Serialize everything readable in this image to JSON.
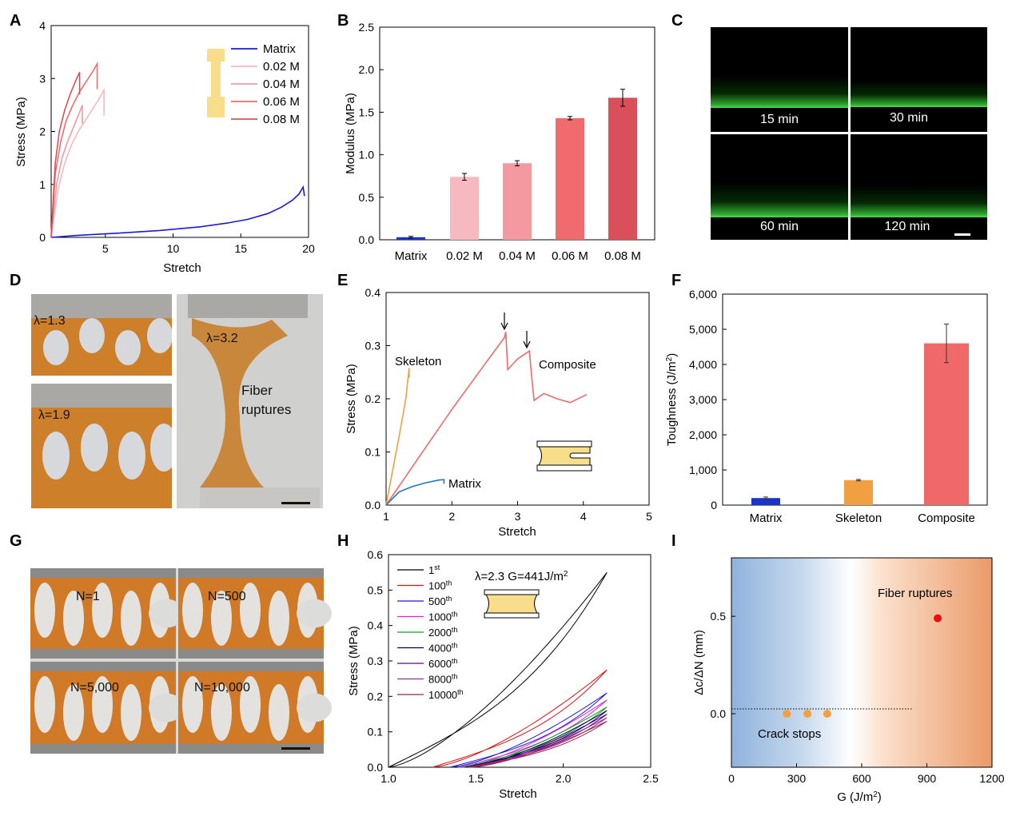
{
  "panel_letters": {
    "A": "A",
    "B": "B",
    "C": "C",
    "D": "D",
    "E": "E",
    "F": "F",
    "G": "G",
    "H": "H",
    "I": "I"
  },
  "colors": {
    "matrix_blue": "#1a1ad6",
    "pink_002": "#f6b9bf",
    "pink_004": "#f29a9f",
    "red_006": "#f06b6e",
    "red_008": "#d9505a",
    "skeleton_orange": "#f0a040",
    "composite_red": "#f06868",
    "matrix_e_blue": "#2277bb",
    "dog_bone_yellow": "#f8dd8a"
  },
  "chart_data": [
    {
      "id": "A",
      "type": "line",
      "xlabel": "Stretch",
      "ylabel": "Stress (MPa)",
      "xlim": [
        1,
        20
      ],
      "ylim": [
        0,
        4
      ],
      "xticks": [
        5,
        10,
        15,
        20
      ],
      "yticks": [
        0,
        1,
        2,
        3,
        4
      ],
      "legend": [
        "Matrix",
        "0.02 M",
        "0.04 M",
        "0.06 M",
        "0.08 M"
      ],
      "series": [
        {
          "name": "Matrix",
          "x": [
            1,
            3,
            6,
            9,
            12,
            14,
            15.5,
            17,
            18,
            18.8,
            19.3,
            19.6,
            19.7
          ],
          "y": [
            0,
            0.04,
            0.08,
            0.13,
            0.2,
            0.27,
            0.34,
            0.45,
            0.57,
            0.7,
            0.82,
            0.95,
            0.78
          ]
        },
        {
          "name": "0.02 M",
          "x": [
            1,
            1.5,
            2,
            2.5,
            3,
            3.5,
            4,
            4.5,
            4.9,
            4.9
          ],
          "y": [
            0,
            0.9,
            1.4,
            1.75,
            2.0,
            2.2,
            2.4,
            2.6,
            2.78,
            2.3
          ]
        },
        {
          "name": "0.04 M",
          "x": [
            1,
            1.4,
            1.8,
            2.2,
            2.6,
            3,
            3.3,
            3.3
          ],
          "y": [
            0,
            1.0,
            1.5,
            1.8,
            2.05,
            2.3,
            2.5,
            2.15
          ]
        },
        {
          "name": "0.06 M",
          "x": [
            1,
            1.3,
            1.7,
            2.1,
            2.6,
            3.1,
            3.6,
            4.0,
            4.4,
            4.4
          ],
          "y": [
            0,
            1.2,
            1.8,
            2.2,
            2.5,
            2.75,
            2.95,
            3.1,
            3.28,
            2.8
          ]
        },
        {
          "name": "0.08 M",
          "x": [
            1,
            1.3,
            1.6,
            2,
            2.4,
            2.8,
            3.1,
            3.1
          ],
          "y": [
            0,
            1.4,
            2.0,
            2.4,
            2.7,
            2.95,
            3.12,
            2.7
          ]
        }
      ]
    },
    {
      "id": "B",
      "type": "bar",
      "ylabel": "Modulus (MPa)",
      "ylim": [
        0,
        2.5
      ],
      "yticks": [
        "0.0",
        "0.5",
        "1.0",
        "1.5",
        "2.0",
        "2.5"
      ],
      "categories": [
        "Matrix",
        "0.02 M",
        "0.04 M",
        "0.06 M",
        "0.08 M"
      ],
      "values": [
        0.03,
        0.74,
        0.9,
        1.43,
        1.67
      ],
      "errors": [
        0.01,
        0.04,
        0.03,
        0.02,
        0.1
      ]
    },
    {
      "id": "C",
      "type": "image-grid",
      "labels": [
        "15 min",
        "30 min",
        "60 min",
        "120 min"
      ]
    },
    {
      "id": "D",
      "type": "photo",
      "labels": [
        "λ=1.3",
        "λ=1.9",
        "λ=3.2",
        "Fiber",
        "ruptures"
      ]
    },
    {
      "id": "E",
      "type": "line",
      "xlabel": "Stretch",
      "ylabel": "Stress (MPa)",
      "xlim": [
        1,
        5
      ],
      "ylim": [
        0,
        0.4
      ],
      "xticks": [
        1,
        2,
        3,
        4,
        5
      ],
      "yticks": [
        "0.0",
        "0.1",
        "0.2",
        "0.3",
        "0.4"
      ],
      "annotations": [
        "Skeleton",
        "Composite",
        "Matrix"
      ],
      "series": [
        {
          "name": "Skeleton",
          "x": [
            1,
            1.1,
            1.2,
            1.3,
            1.35,
            1.35
          ],
          "y": [
            0,
            0.065,
            0.13,
            0.2,
            0.258,
            0.24
          ]
        },
        {
          "name": "Composite",
          "x": [
            1,
            1.5,
            2,
            2.5,
            2.8,
            2.82,
            2.85,
            3.0,
            3.18,
            3.2,
            3.25,
            3.4,
            3.6,
            3.8,
            4.0,
            4.05
          ],
          "y": [
            0,
            0.09,
            0.18,
            0.265,
            0.315,
            0.326,
            0.255,
            0.275,
            0.29,
            0.26,
            0.197,
            0.21,
            0.2,
            0.193,
            0.205,
            0.208
          ]
        },
        {
          "name": "Matrix",
          "x": [
            1,
            1.2,
            1.4,
            1.6,
            1.8,
            1.88,
            1.88
          ],
          "y": [
            0,
            0.025,
            0.035,
            0.042,
            0.047,
            0.048,
            0.04
          ]
        }
      ]
    },
    {
      "id": "F",
      "type": "bar",
      "ylabel": "Toughness (J/m2)",
      "ylim": [
        0,
        6000
      ],
      "yticks": [
        "0",
        "1,000",
        "2,000",
        "3,000",
        "4,000",
        "5,000",
        "6,000"
      ],
      "categories": [
        "Matrix",
        "Skeleton",
        "Composite"
      ],
      "values": [
        200,
        710,
        4600
      ],
      "errors": [
        30,
        20,
        550
      ]
    },
    {
      "id": "G",
      "type": "photo",
      "labels": [
        "N=1",
        "N=500",
        "N=5,000",
        "N=10,000"
      ]
    },
    {
      "id": "H",
      "type": "line",
      "xlabel": "Stretch",
      "ylabel": "Stress (MPa)",
      "xlim": [
        1.0,
        2.5
      ],
      "ylim": [
        0,
        0.6
      ],
      "xticks": [
        "1.0",
        "1.5",
        "2.0",
        "2.5"
      ],
      "yticks": [
        "0.0",
        "0.1",
        "0.2",
        "0.3",
        "0.4",
        "0.5",
        "0.6"
      ],
      "annotation": "λ=2.3   G=441J/m2",
      "legend": [
        {
          "n": "1",
          "sup": "st",
          "color": "#000000"
        },
        {
          "n": "100",
          "sup": "th",
          "color": "#e01010"
        },
        {
          "n": "500",
          "sup": "th",
          "color": "#1a1ae0"
        },
        {
          "n": "1000",
          "sup": "th",
          "color": "#e020e0"
        },
        {
          "n": "2000",
          "sup": "th",
          "color": "#10a020"
        },
        {
          "n": "4000",
          "sup": "th",
          "color": "#000050"
        },
        {
          "n": "6000",
          "sup": "th",
          "color": "#600090"
        },
        {
          "n": "8000",
          "sup": "th",
          "color": "#903090"
        },
        {
          "n": "10000",
          "sup": "th",
          "color": "#a02050"
        }
      ],
      "peaks": [
        0.55,
        0.275,
        0.21,
        0.19,
        0.17,
        0.16,
        0.15,
        0.14,
        0.13
      ],
      "starts": [
        1.0,
        1.25,
        1.35,
        1.4,
        1.42,
        1.44,
        1.45,
        1.46,
        1.47
      ]
    },
    {
      "id": "I",
      "type": "scatter",
      "xlabel": "G (J/m2)",
      "ylabel": "Δc/ΔN (mm)",
      "xlim": [
        0,
        1200
      ],
      "ylim": [
        -0.25,
        0.8
      ],
      "xticks": [
        0,
        300,
        600,
        900,
        1200
      ],
      "yticks": [
        "0.0",
        "0.5"
      ],
      "points": [
        {
          "x": 255,
          "y": 0.0,
          "color": "#f0a040"
        },
        {
          "x": 350,
          "y": 0.0,
          "color": "#f0a040"
        },
        {
          "x": 441,
          "y": 0.0,
          "color": "#f0a040"
        },
        {
          "x": 950,
          "y": 0.49,
          "color": "#e81010"
        }
      ],
      "annotations": [
        "Fiber ruptures",
        "Crack stops"
      ]
    }
  ]
}
